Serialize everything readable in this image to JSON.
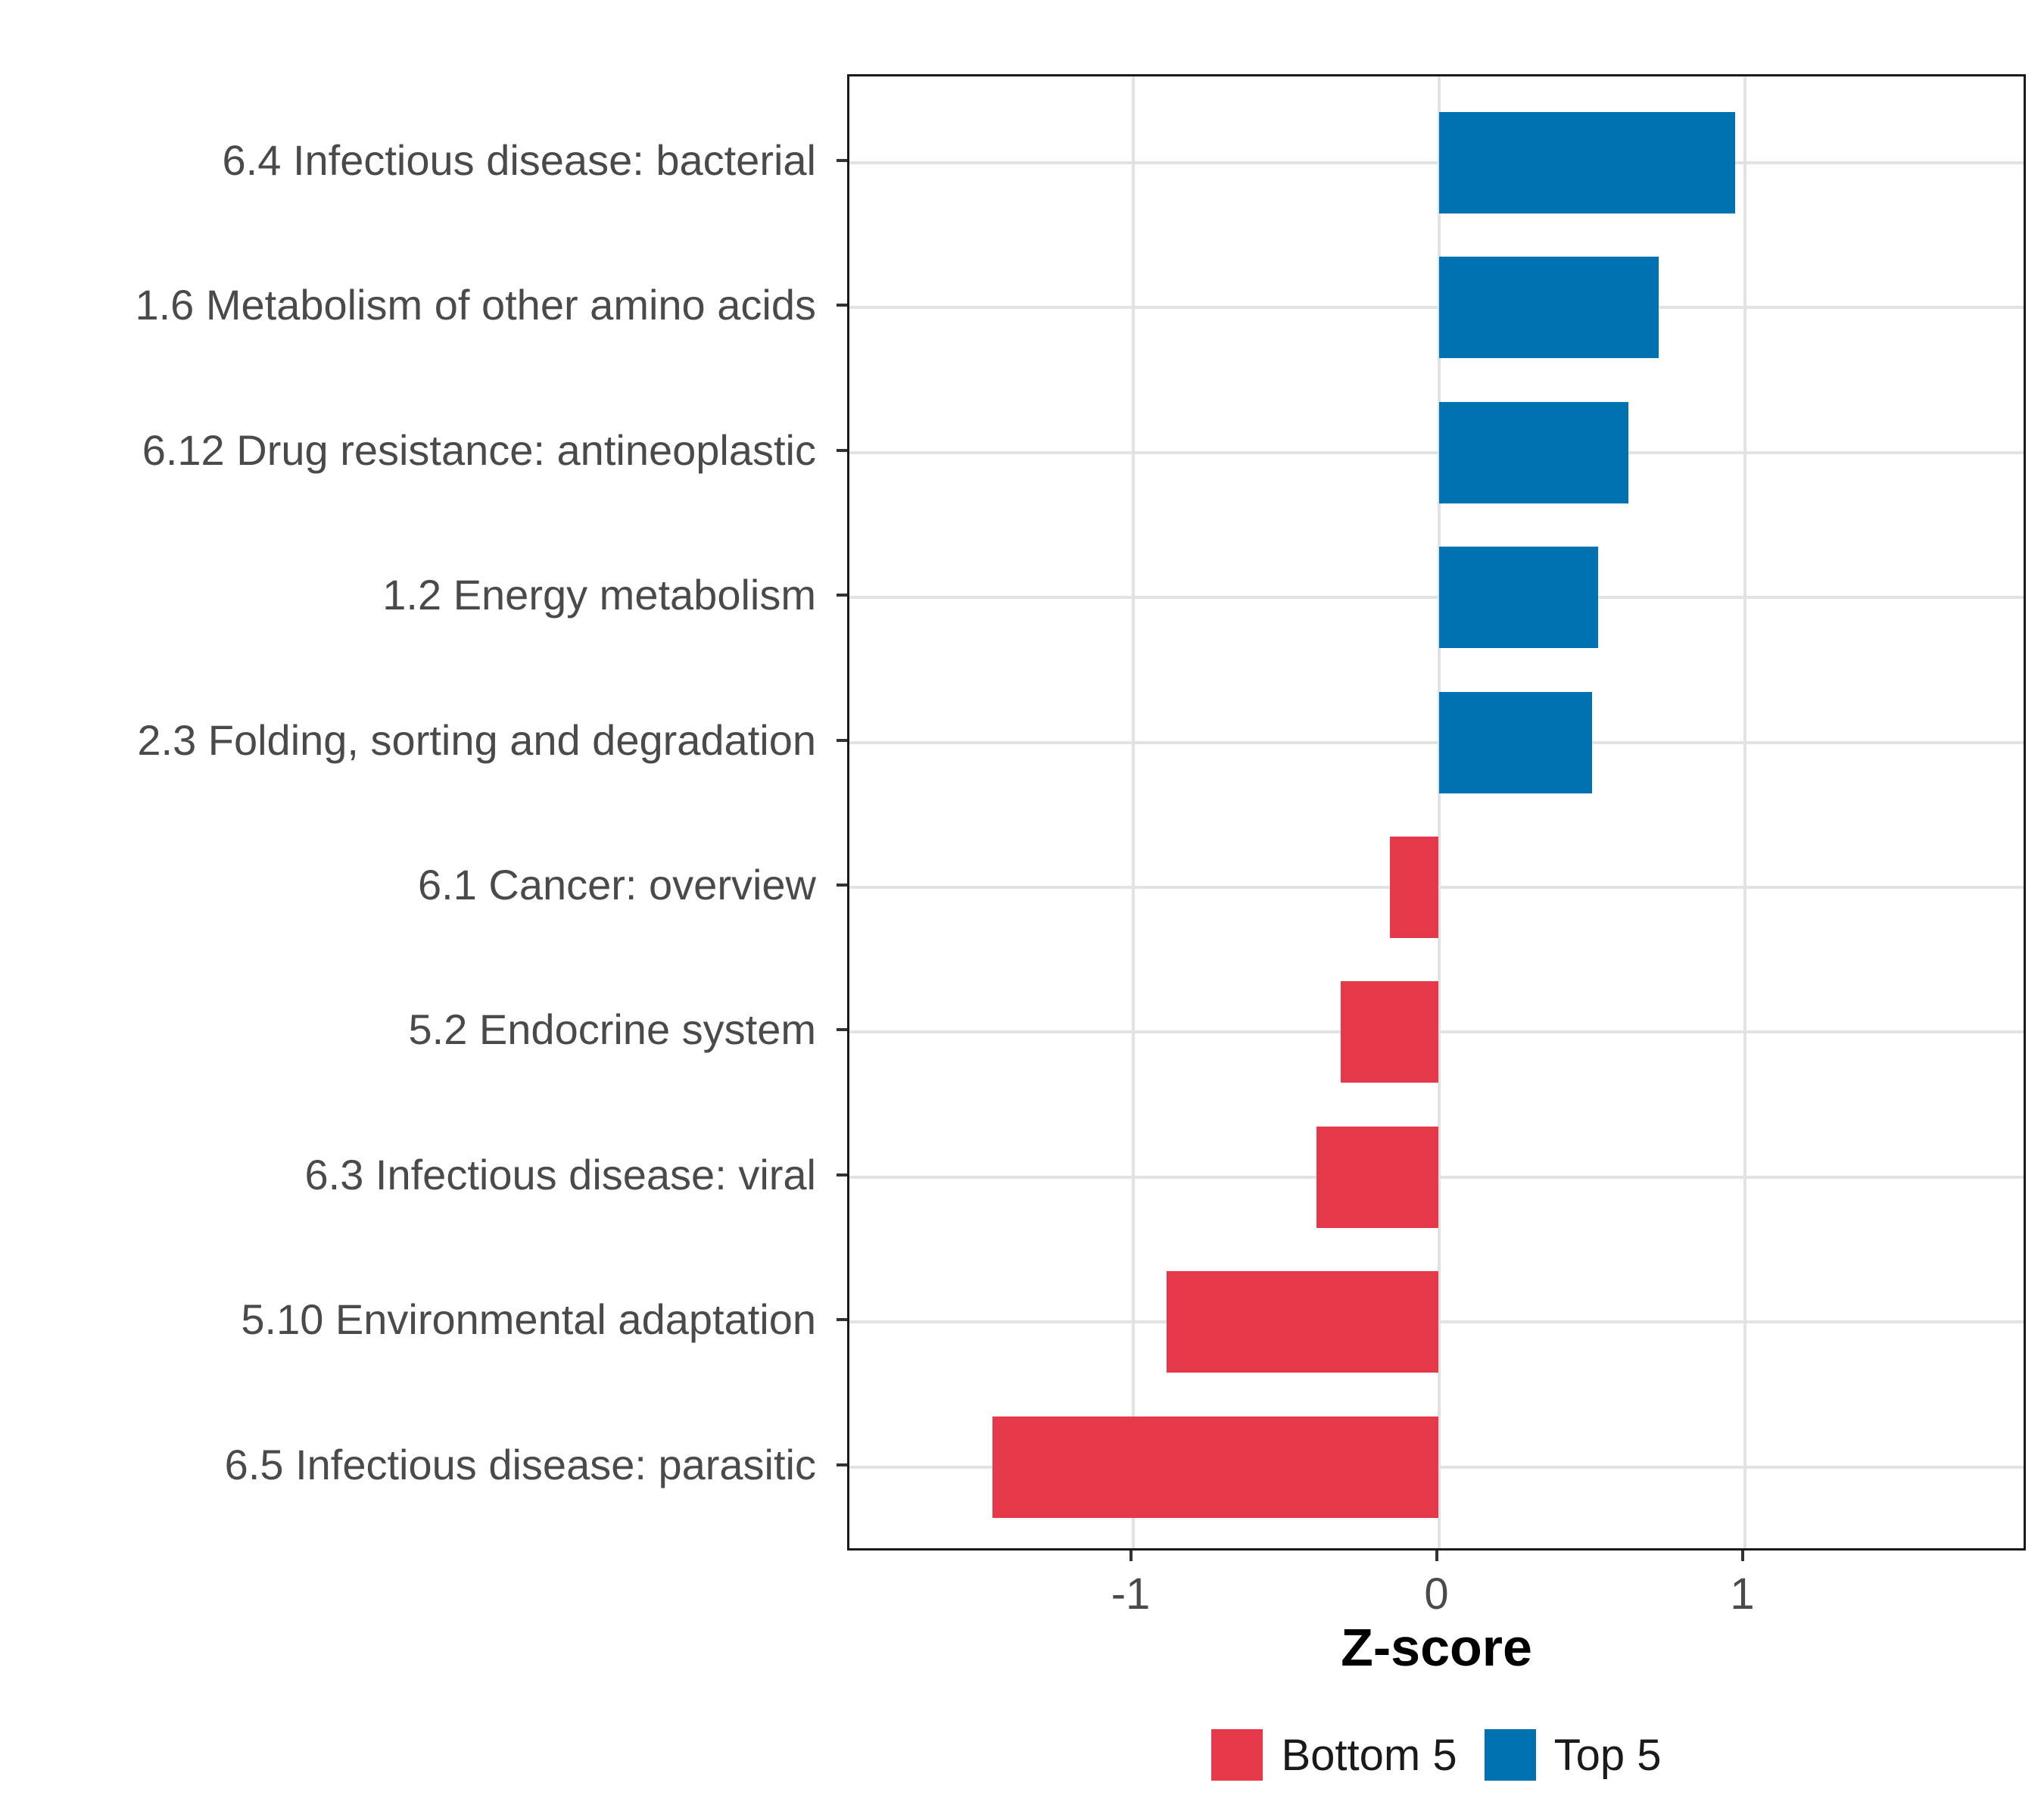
{
  "chart_data": {
    "type": "bar",
    "orientation": "horizontal",
    "title": "",
    "xlabel": "Z-score",
    "ylabel": "",
    "categories": [
      "6.4 Infectious disease: bacterial",
      "1.6 Metabolism of other amino acids",
      "6.12 Drug resistance: antineoplastic",
      "1.2 Energy metabolism",
      "2.3 Folding, sorting and degradation",
      "6.1 Cancer: overview",
      "5.2 Endocrine system",
      "6.3 Infectious disease: viral",
      "5.10 Environmental adaptation",
      "6.5 Infectious disease: parasitic"
    ],
    "values": [
      0.97,
      0.72,
      0.62,
      0.52,
      0.5,
      -0.16,
      -0.32,
      -0.4,
      -0.89,
      -1.46
    ],
    "groups": [
      "Top 5",
      "Top 5",
      "Top 5",
      "Top 5",
      "Top 5",
      "Bottom 5",
      "Bottom 5",
      "Bottom 5",
      "Bottom 5",
      "Bottom 5"
    ],
    "xlim": [
      -1.93,
      1.93
    ],
    "x_ticks": [
      -1,
      0,
      1
    ],
    "x_tick_labels": [
      "-1",
      "0",
      "1"
    ],
    "grid": true,
    "legend_position": "bottom",
    "legend": [
      {
        "label": "Bottom 5",
        "color": "#E6384B"
      },
      {
        "label": "Top 5",
        "color": "#0072B2"
      }
    ],
    "colors": {
      "positive": "#0072B2",
      "negative": "#E6384B"
    }
  }
}
